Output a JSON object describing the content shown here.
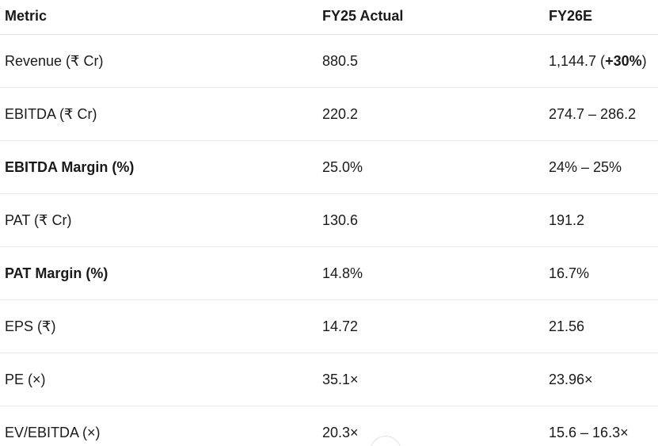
{
  "table": {
    "headers": [
      "Metric",
      "FY25 Actual",
      "FY26E"
    ],
    "rows": [
      {
        "metric": "Revenue (₹ Cr)",
        "fy25": "880.5",
        "fy26_main": "1,144.7 (",
        "fy26_bold": "+30%",
        "fy26_tail": ")",
        "bold": false
      },
      {
        "metric": "EBITDA (₹ Cr)",
        "fy25": "220.2",
        "fy26_main": "274.7 – 286.2",
        "fy26_bold": "",
        "fy26_tail": "",
        "bold": false
      },
      {
        "metric": "EBITDA Margin (%)",
        "fy25": "25.0%",
        "fy26_main": "24% – 25%",
        "fy26_bold": "",
        "fy26_tail": "",
        "bold": true
      },
      {
        "metric": "PAT (₹ Cr)",
        "fy25": "130.6",
        "fy26_main": "191.2",
        "fy26_bold": "",
        "fy26_tail": "",
        "bold": false
      },
      {
        "metric": "PAT Margin (%)",
        "fy25": "14.8%",
        "fy26_main": "16.7%",
        "fy26_bold": "",
        "fy26_tail": "",
        "bold": true
      },
      {
        "metric": "EPS (₹)",
        "fy25": "14.72",
        "fy26_main": "21.56",
        "fy26_bold": "",
        "fy26_tail": "",
        "bold": false
      },
      {
        "metric": "PE (×)",
        "fy25": "35.1×",
        "fy26_main": "23.96×",
        "fy26_bold": "",
        "fy26_tail": "",
        "bold": false
      },
      {
        "metric": "EV/EBITDA (×)",
        "fy25": "20.3×",
        "fy26_main": "15.6 – 16.3×",
        "fy26_bold": "",
        "fy26_tail": "",
        "bold": false
      }
    ]
  }
}
